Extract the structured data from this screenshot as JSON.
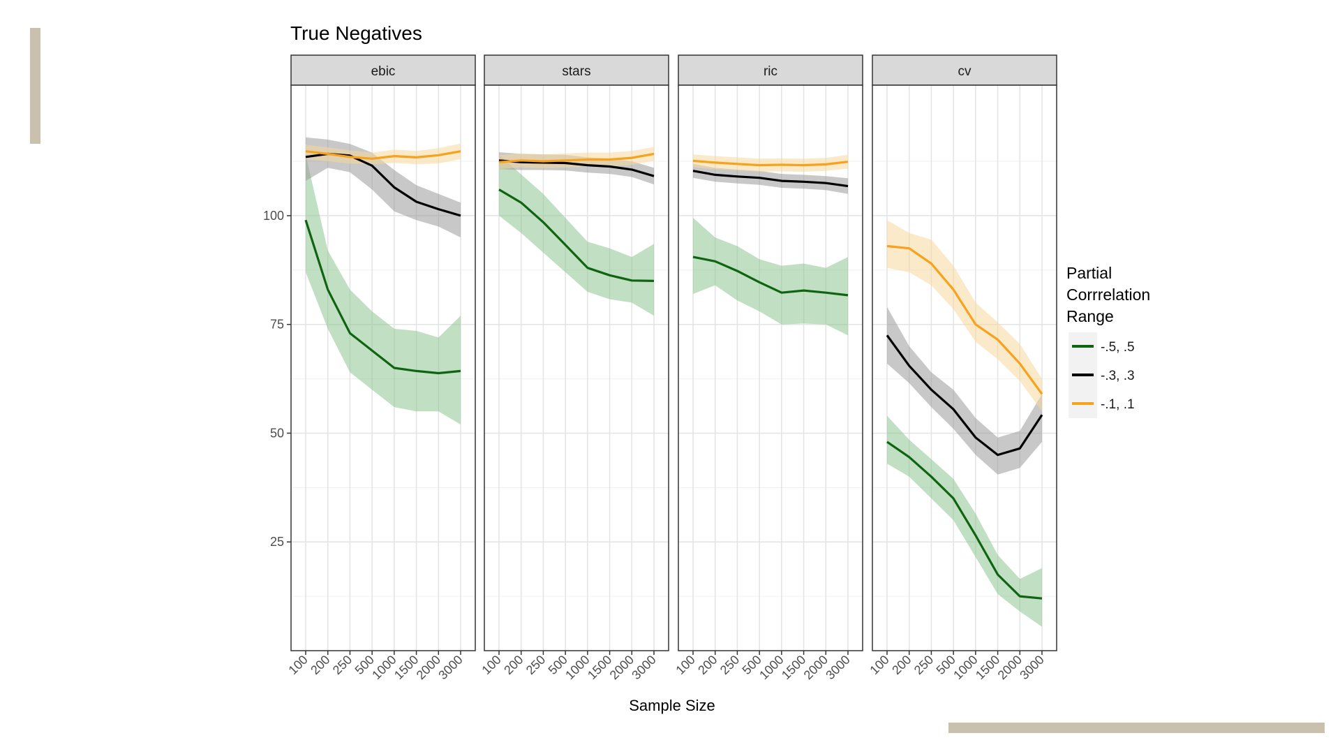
{
  "slide": {
    "decor": {
      "accent_color": "#c9c1ad"
    }
  },
  "chart_data": {
    "type": "line",
    "title": "True Negatives",
    "xlabel": "Sample Size",
    "ylabel": "",
    "x_categories": [
      "100",
      "200",
      "250",
      "500",
      "1000",
      "1500",
      "2000",
      "3000"
    ],
    "ylim": [
      0,
      130
    ],
    "y_ticks": [
      25,
      50,
      75,
      100
    ],
    "grid": true,
    "legend": {
      "title_lines": [
        "Partial",
        "Corrrelation",
        "Range"
      ],
      "position": "right"
    },
    "series_styles": [
      {
        "name": "-.5, .5",
        "color": "#0e6410",
        "band_color": "#8ec58f"
      },
      {
        "name": "-.3, .3",
        "color": "#000000",
        "band_color": "#9a9a9a"
      },
      {
        "name": "-.1, .1",
        "color": "#f6a21c",
        "band_color": "#f8d99c"
      }
    ],
    "panels": [
      {
        "label": "ebic",
        "series": [
          {
            "name": "-.5, .5",
            "mean": [
              99,
              83,
              73,
              69,
              65,
              64.3,
              63.8,
              64.3
            ],
            "lower": [
              87,
              74,
              64,
              60,
              56,
              55,
              55,
              52
            ],
            "upper": [
              114,
              92,
              83,
              78,
              74,
              73.5,
              72,
              77
            ]
          },
          {
            "name": "-.3, .3",
            "mean": [
              113.5,
              114.2,
              113.8,
              111.5,
              106.5,
              103.2,
              101.5,
              100
            ],
            "lower": [
              108,
              111,
              110,
              106,
              101,
              99,
              97.5,
              95
            ],
            "upper": [
              118,
              117.5,
              116.5,
              114.5,
              110.5,
              107,
              105,
              103
            ]
          },
          {
            "name": "-.1, .1",
            "mean": [
              114.8,
              114.2,
              113.5,
              113.1,
              113.7,
              113.4,
              113.9,
              114.8
            ],
            "lower": [
              113,
              112.5,
              112,
              111.8,
              112.1,
              111.8,
              112,
              113
            ],
            "upper": [
              116.3,
              115.7,
              115,
              114.5,
              115.2,
              114.9,
              115.5,
              116.6
            ]
          }
        ]
      },
      {
        "label": "stars",
        "series": [
          {
            "name": "-.5, .5",
            "mean": [
              106,
              103,
              98.5,
              93.3,
              88,
              86.3,
              85.1,
              85
            ],
            "lower": [
              100,
              96,
              91.5,
              87,
              82.5,
              80.8,
              80,
              77
            ],
            "upper": [
              114,
              109.5,
              105,
              99.5,
              94,
              92.5,
              90.5,
              93.5
            ]
          },
          {
            "name": "-.3, .3",
            "mean": [
              112.7,
              112.3,
              112.2,
              112.1,
              111.6,
              111.3,
              110.6,
              109.1
            ],
            "lower": [
              110.7,
              110.5,
              110.5,
              110.4,
              109.9,
              109.6,
              108.9,
              107.2
            ],
            "upper": [
              114.6,
              114.2,
              114.1,
              114.0,
              113.4,
              113.1,
              112.5,
              111.0
            ]
          },
          {
            "name": "-.1, .1",
            "mean": [
              112.3,
              112.7,
              112.5,
              112.7,
              112.9,
              112.9,
              113.3,
              114.2
            ],
            "lower": [
              110.7,
              111.1,
              110.9,
              111.1,
              111.3,
              111.3,
              111.7,
              112.6
            ],
            "upper": [
              113.9,
              114.3,
              114.1,
              114.3,
              114.5,
              114.5,
              114.9,
              115.8
            ]
          }
        ]
      },
      {
        "label": "ric",
        "series": [
          {
            "name": "-.5, .5",
            "mean": [
              90.5,
              89.5,
              87.3,
              84.7,
              82.3,
              82.8,
              82.3,
              81.7
            ],
            "lower": [
              82,
              84,
              80.5,
              78,
              75,
              75.2,
              75,
              72.5
            ],
            "upper": [
              99.5,
              95,
              93,
              90,
              88.5,
              89,
              88,
              90.5
            ]
          },
          {
            "name": "-.3, .3",
            "mean": [
              110.3,
              109.4,
              109,
              108.7,
              108,
              107.8,
              107.5,
              106.8
            ],
            "lower": [
              108.7,
              107.8,
              107.4,
              107.1,
              106.4,
              106.2,
              105.9,
              105.0
            ],
            "upper": [
              111.9,
              111.0,
              110.6,
              110.3,
              109.6,
              109.4,
              109.1,
              108.6
            ]
          },
          {
            "name": "-.1, .1",
            "mean": [
              112.6,
              112.2,
              111.9,
              111.6,
              111.7,
              111.6,
              111.8,
              112.4
            ],
            "lower": [
              111.1,
              110.7,
              110.4,
              110.1,
              110.2,
              110.1,
              110.3,
              110.8
            ],
            "upper": [
              114.1,
              113.7,
              113.4,
              113.1,
              113.2,
              113.1,
              113.3,
              114.0
            ]
          }
        ]
      },
      {
        "label": "cv",
        "series": [
          {
            "name": "-.5, .5",
            "mean": [
              48,
              44.5,
              40,
              35,
              26.5,
              17.5,
              12.5,
              12
            ],
            "lower": [
              43,
              40,
              35,
              30,
              21.5,
              13,
              9,
              5.5
            ],
            "upper": [
              54,
              48.5,
              44,
              39.5,
              31.5,
              22,
              16.5,
              19
            ]
          },
          {
            "name": "-.3, .3",
            "mean": [
              72.5,
              65.5,
              60,
              55.5,
              49,
              45,
              46.5,
              54.2
            ],
            "lower": [
              66,
              61.5,
              56,
              51,
              45,
              40.5,
              42,
              48
            ],
            "upper": [
              79,
              70,
              64,
              60,
              53.5,
              49,
              50.5,
              59
            ]
          },
          {
            "name": "-.1, .1",
            "mean": [
              93,
              92.5,
              89,
              83,
              75,
              71.5,
              66,
              59
            ],
            "lower": [
              88,
              87,
              84,
              78.5,
              71,
              67,
              62,
              55
            ],
            "upper": [
              99,
              96,
              94.5,
              88.5,
              80,
              75.5,
              70.5,
              62.5
            ]
          }
        ]
      }
    ]
  }
}
